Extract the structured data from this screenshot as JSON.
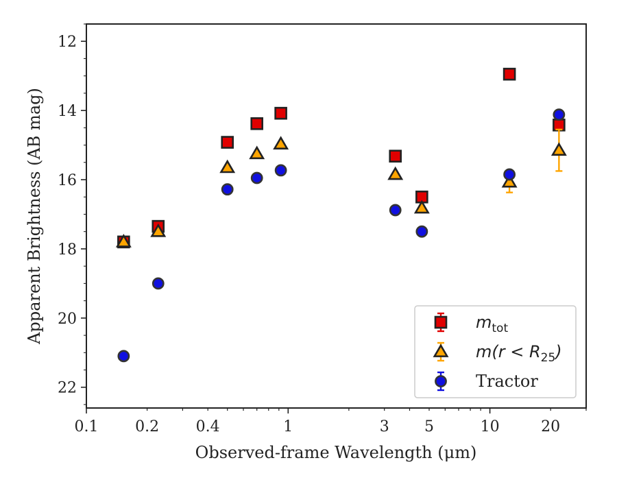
{
  "chart_data": {
    "type": "scatter",
    "title": "",
    "xlabel": "Observed-frame Wavelength (μm)",
    "ylabel": "Apparent Brightness (AB mag)",
    "xscale": "log",
    "xlim": [
      0.1,
      30
    ],
    "ylim": [
      22.6,
      11.5
    ],
    "y_inverted": true,
    "x_ticks": [
      0.1,
      0.2,
      0.4,
      1,
      3,
      5,
      10,
      20
    ],
    "x_tick_labels": [
      "0.1",
      "0.2",
      "0.4",
      "1",
      "3",
      "5",
      "10",
      "20"
    ],
    "y_ticks": [
      12,
      14,
      16,
      18,
      20,
      22
    ],
    "y_tick_labels": [
      "12",
      "14",
      "16",
      "18",
      "20",
      "22"
    ],
    "grid": false,
    "legend_position": "bottom-right",
    "series": [
      {
        "name": "m_tot",
        "legend_label": "m_tot",
        "marker": "square",
        "color": "#e00000",
        "edge_color": "#222222",
        "errorbar_color": "#e00000",
        "points": [
          {
            "x": 0.153,
            "y": 17.8,
            "err": 0.05
          },
          {
            "x": 0.227,
            "y": 17.35,
            "err": 0.05
          },
          {
            "x": 0.5,
            "y": 14.92,
            "err": 0.02
          },
          {
            "x": 0.7,
            "y": 14.38,
            "err": 0.02
          },
          {
            "x": 0.92,
            "y": 14.08,
            "err": 0.02
          },
          {
            "x": 3.4,
            "y": 15.32,
            "err": 0.02
          },
          {
            "x": 4.6,
            "y": 16.5,
            "err": 0.03
          },
          {
            "x": 12.5,
            "y": 12.95,
            "err": 0.02
          },
          {
            "x": 22.0,
            "y": 14.42,
            "err": 0.05
          }
        ]
      },
      {
        "name": "m(r < R25)",
        "legend_label": "m(r < R25)",
        "marker": "triangle",
        "color": "#ffa500",
        "edge_color": "#222222",
        "errorbar_color": "#ffa500",
        "points": [
          {
            "x": 0.153,
            "y": 17.8,
            "err": 0.05
          },
          {
            "x": 0.227,
            "y": 17.5,
            "err": 0.05
          },
          {
            "x": 0.5,
            "y": 15.65,
            "err": 0.02
          },
          {
            "x": 0.7,
            "y": 15.25,
            "err": 0.02
          },
          {
            "x": 0.92,
            "y": 14.97,
            "err": 0.02
          },
          {
            "x": 3.4,
            "y": 15.85,
            "err": 0.02
          },
          {
            "x": 4.6,
            "y": 16.82,
            "err": 0.03
          },
          {
            "x": 12.5,
            "y": 16.07,
            "err": 0.3
          },
          {
            "x": 22.0,
            "y": 15.15,
            "err": 0.6
          }
        ]
      },
      {
        "name": "Tractor",
        "legend_label": "Tractor",
        "marker": "circle",
        "color": "#1010e0",
        "edge_color": "#333333",
        "errorbar_color": "#1010e0",
        "points": [
          {
            "x": 0.153,
            "y": 21.1,
            "err": 0.05
          },
          {
            "x": 0.227,
            "y": 19.0,
            "err": 0.05
          },
          {
            "x": 0.5,
            "y": 16.28,
            "err": 0.02
          },
          {
            "x": 0.7,
            "y": 15.95,
            "err": 0.02
          },
          {
            "x": 0.92,
            "y": 15.73,
            "err": 0.02
          },
          {
            "x": 3.4,
            "y": 16.88,
            "err": 0.02
          },
          {
            "x": 4.6,
            "y": 17.5,
            "err": 0.03
          },
          {
            "x": 12.5,
            "y": 15.85,
            "err": 0.05
          },
          {
            "x": 22.0,
            "y": 14.12,
            "err": 0.05
          }
        ]
      }
    ]
  }
}
